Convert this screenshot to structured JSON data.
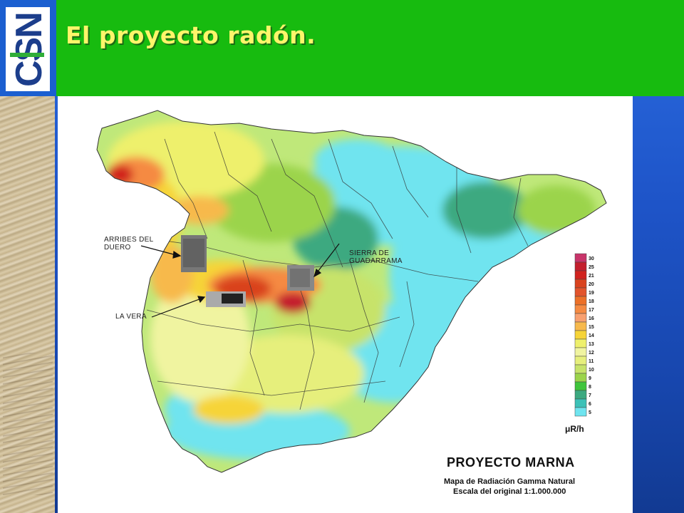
{
  "slide": {
    "title": "El proyecto radón.",
    "logo_text": "CSN"
  },
  "map": {
    "labels": {
      "arribes_line1": "ARRIBES DEL",
      "arribes_line2": "DUERO",
      "sierra_line1": "SIERRA DE",
      "sierra_line2": "GUADARRAMA",
      "la_vera": "LA VERA"
    },
    "legend": {
      "ticks": [
        "30",
        "25",
        "21",
        "20",
        "19",
        "18",
        "17",
        "16",
        "15",
        "14",
        "13",
        "12",
        "11",
        "10",
        "9",
        "8",
        "7",
        "6",
        "5"
      ],
      "colors": [
        "#c8346a",
        "#c41f2d",
        "#d1231f",
        "#d9431e",
        "#e2542b",
        "#ec7028",
        "#f58a42",
        "#f8a070",
        "#f7b94c",
        "#f6d437",
        "#eef06c",
        "#f0f4a0",
        "#e6ef7c",
        "#c7e36a",
        "#9bd44b",
        "#3fc53c",
        "#3ca980",
        "#3bc1b7",
        "#6fe4ef"
      ],
      "unit": "μR/h"
    },
    "project": {
      "title": "PROYECTO MARNA",
      "subtitle": "Mapa de Radiación Gamma Natural",
      "scale": "Escala del original 1:1.000.000"
    }
  },
  "colors": {
    "header_green": "#17bb0f",
    "title_yellow": "#fff56a",
    "slide_blue": "#1f56c6"
  }
}
